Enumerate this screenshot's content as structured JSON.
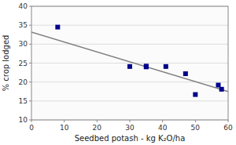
{
  "chart_data": {
    "type": "scatter",
    "xlabel": "Seedbed potash - kg K₂O/ha",
    "ylabel": "% crop lodged",
    "xlim": [
      0,
      60
    ],
    "ylim": [
      10,
      40
    ],
    "xticks": [
      0,
      10,
      20,
      30,
      40,
      50,
      60
    ],
    "yticks": [
      10,
      15,
      20,
      25,
      30,
      35,
      40
    ],
    "grid": true,
    "series": [
      {
        "type": "line",
        "color": "#808080",
        "x": [
          0,
          60
        ],
        "values": [
          33.2,
          17.48
        ]
      },
      {
        "type": "scatter",
        "color": "#00008B",
        "marker": "square",
        "x": [
          8,
          30,
          35,
          35,
          41,
          47,
          50,
          57,
          58
        ],
        "values": [
          34.5,
          24.1,
          24.2,
          24.0,
          24.1,
          22.2,
          16.7,
          19.2,
          18.1
        ]
      }
    ]
  }
}
